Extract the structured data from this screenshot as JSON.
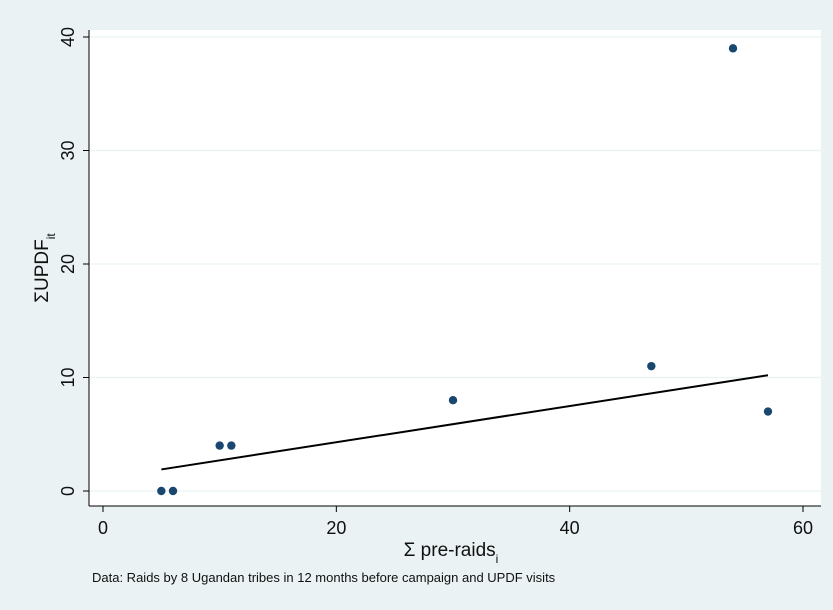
{
  "chart_data": {
    "type": "scatter",
    "xlabel": "Σ pre-raids",
    "xlabel_sub": "i",
    "ylabel": "ΣUPDF",
    "ylabel_sub": "it",
    "note": "Data: Raids by 8 Ugandan tribes in 12 months before campaign and UPDF visits",
    "xlim": [
      0,
      60
    ],
    "ylim": [
      0,
      40
    ],
    "x_ticks": [
      0,
      20,
      40,
      60
    ],
    "y_ticks": [
      0,
      10,
      20,
      30,
      40
    ],
    "grid": true,
    "legend": "none",
    "marker_color": "#1a476f",
    "points": [
      {
        "x": 5,
        "y": 0
      },
      {
        "x": 6,
        "y": 0
      },
      {
        "x": 10,
        "y": 4
      },
      {
        "x": 11,
        "y": 4
      },
      {
        "x": 30,
        "y": 8
      },
      {
        "x": 47,
        "y": 11
      },
      {
        "x": 54,
        "y": 39
      },
      {
        "x": 57,
        "y": 7
      }
    ],
    "fit_line": {
      "x": [
        5,
        57
      ],
      "y": [
        1.9,
        10.2
      ]
    }
  }
}
